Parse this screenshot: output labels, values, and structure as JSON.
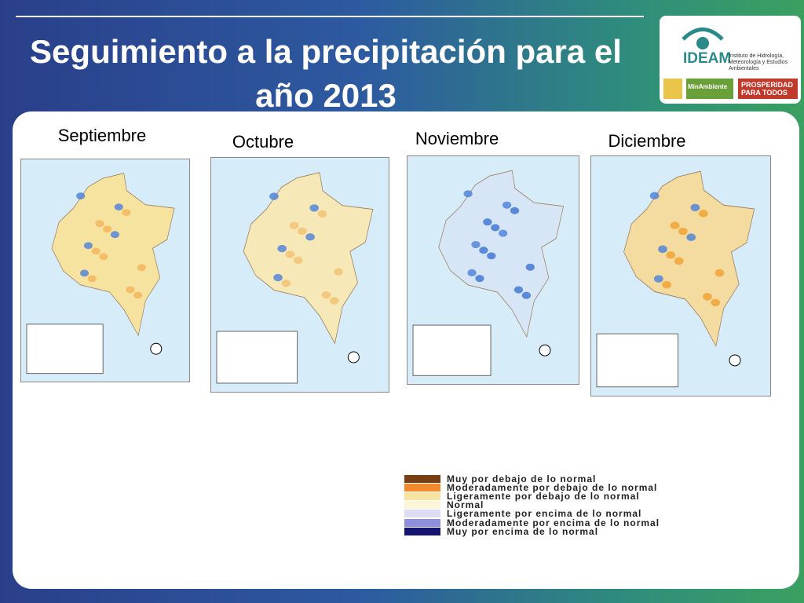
{
  "header": {
    "title": "Seguimiento a la precipitación para el año 2013"
  },
  "logo": {
    "name": "IDEAM",
    "subtitle": "Instituto de Hidrología, Meteorología y Estudios Ambientales",
    "ministry": "MinAmbiente",
    "slogan": "PROSPERIDAD PARA TODOS"
  },
  "maps": [
    {
      "month": "Septiembre"
    },
    {
      "month": "Octubre"
    },
    {
      "month": "Noviembre"
    },
    {
      "month": "Diciembre"
    }
  ],
  "legend": {
    "items": [
      {
        "label": "Muy por debajo de lo normal",
        "color": "#7b3f12"
      },
      {
        "label": "Moderadamente por debajo de lo normal",
        "color": "#f08a2c"
      },
      {
        "label": "Ligeramente por debajo de lo normal",
        "color": "#f7e3a0"
      },
      {
        "label": "Normal",
        "color": "#fbf6d8"
      },
      {
        "label": "Ligeramente por encima de lo normal",
        "color": "#dcdcf4"
      },
      {
        "label": "Moderadamente por encima de lo normal",
        "color": "#8f8fe0"
      },
      {
        "label": "Muy por encima de lo normal",
        "color": "#14146e"
      }
    ]
  }
}
